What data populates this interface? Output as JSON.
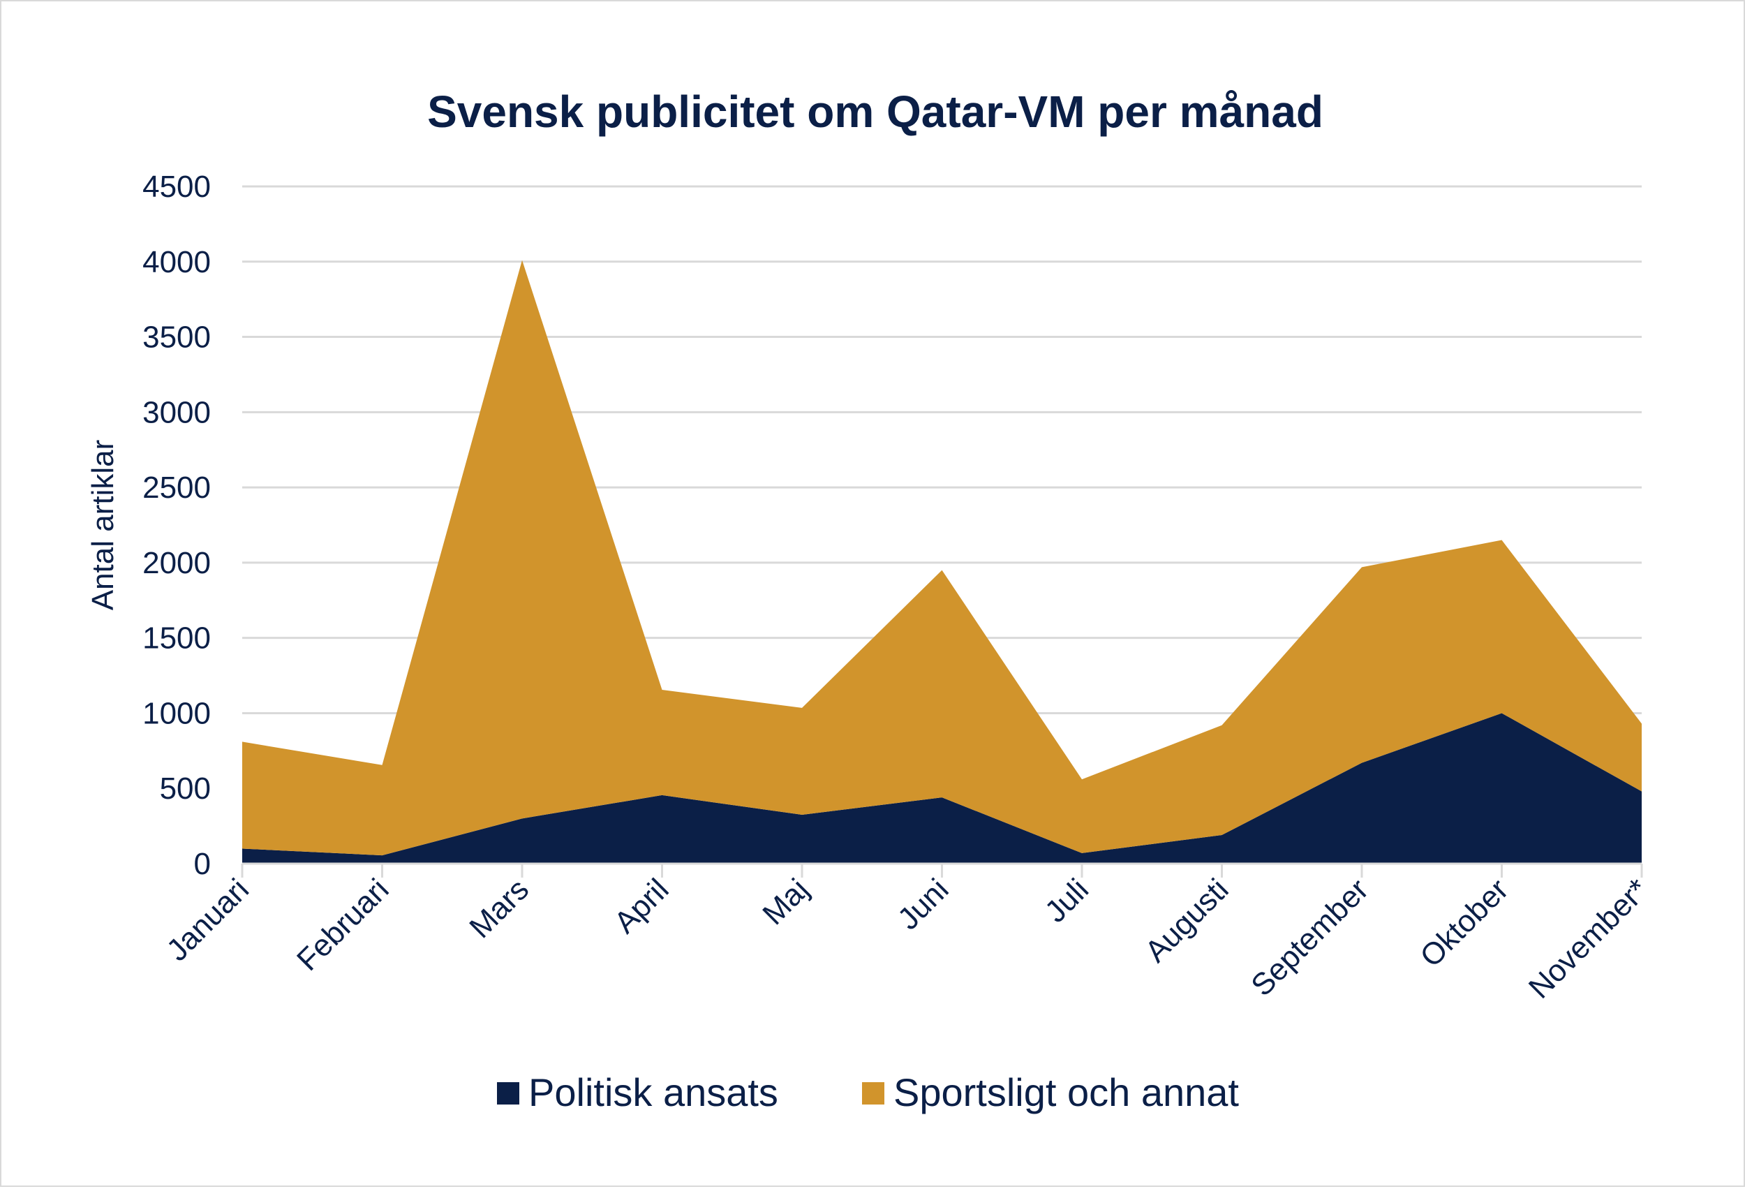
{
  "colors": {
    "politisk": "#0b1f47",
    "sportsligt": "#d1942c",
    "text": "#0b1f47",
    "grid": "#d9d9d9"
  },
  "chart_data": {
    "type": "area",
    "stacked": true,
    "title": "Svensk publicitet om Qatar-VM per månad",
    "xlabel": "",
    "ylabel": "Antal artiklar",
    "ylim": [
      0,
      4500
    ],
    "yticks": [
      "0",
      "500",
      "1000",
      "1500",
      "2000",
      "2500",
      "3000",
      "3500",
      "4000",
      "4500"
    ],
    "grid": true,
    "legend_position": "bottom",
    "categories": [
      "Januari",
      "Februari",
      "Mars",
      "April",
      "Maj",
      "Juni",
      "Juli",
      "Augusti",
      "September",
      "Oktober",
      "November*"
    ],
    "series": [
      {
        "name": "Politisk ansats",
        "color": "#0b1f47",
        "values": [
          100,
          55,
          300,
          455,
          325,
          440,
          70,
          190,
          670,
          1000,
          480
        ]
      },
      {
        "name": "Sportsligt och annat",
        "color": "#d1942c",
        "values": [
          710,
          600,
          3710,
          700,
          710,
          1510,
          490,
          730,
          1300,
          1150,
          450
        ]
      }
    ]
  }
}
